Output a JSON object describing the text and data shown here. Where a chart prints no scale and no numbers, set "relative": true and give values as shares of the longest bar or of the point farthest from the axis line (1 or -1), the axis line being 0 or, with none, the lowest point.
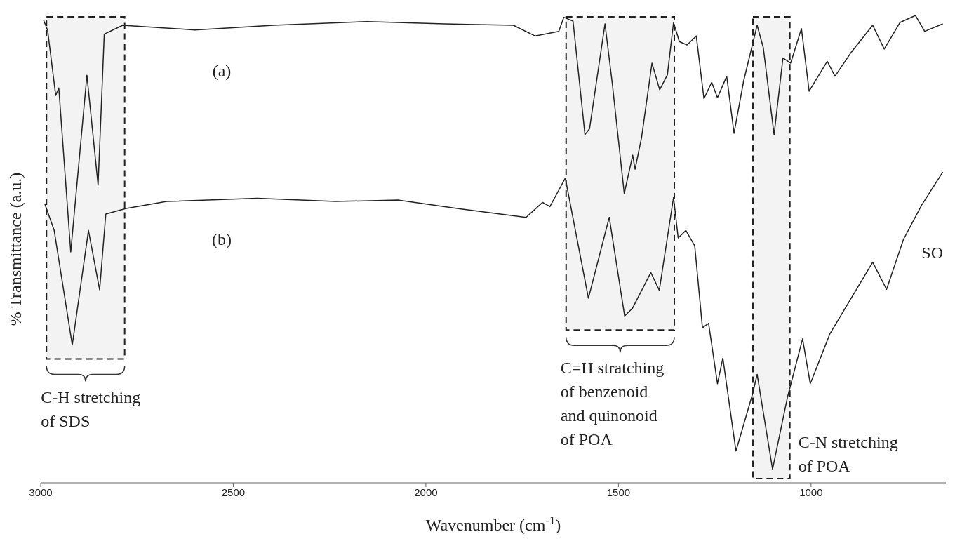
{
  "chart_data": {
    "type": "line",
    "relative": true,
    "xlabel": "Wavenumber (cm$^{-1}$)",
    "ylabel": "% Transmittance (a.u.)",
    "xlim": [
      3000,
      650
    ],
    "xticks": [
      3000,
      2500,
      2000,
      1500,
      1000
    ],
    "series": [
      {
        "name": "(a)",
        "color": "#222222",
        "x": [
          2993,
          2982,
          2961,
          2953,
          2922,
          2880,
          2851,
          2835,
          2787,
          2600,
          2396,
          2153,
          1951,
          1891,
          1773,
          1716,
          1655,
          1642,
          1618,
          1587,
          1575,
          1535,
          1516,
          1485,
          1463,
          1457,
          1440,
          1413,
          1393,
          1373,
          1357,
          1342,
          1322,
          1298,
          1278,
          1258,
          1243,
          1219,
          1200,
          1175,
          1140,
          1124,
          1096,
          1073,
          1053,
          1025,
          1005,
          958,
          938,
          895,
          840,
          810,
          769,
          729,
          705,
          658
        ],
        "values": [
          0.991,
          0.968,
          0.829,
          0.845,
          0.494,
          0.872,
          0.637,
          0.96,
          0.979,
          0.969,
          0.979,
          0.987,
          0.982,
          0.981,
          0.979,
          0.956,
          0.966,
          0.996,
          0.988,
          0.745,
          0.758,
          0.982,
          0.854,
          0.619,
          0.701,
          0.671,
          0.739,
          0.898,
          0.841,
          0.873,
          0.985,
          0.944,
          0.937,
          0.956,
          0.822,
          0.857,
          0.824,
          0.87,
          0.748,
          0.86,
          0.979,
          0.931,
          0.745,
          0.909,
          0.898,
          0.972,
          0.838,
          0.902,
          0.87,
          0.922,
          0.979,
          0.928,
          0.985,
          1,
          0.966,
          0.982
        ]
      },
      {
        "name": "(b)",
        "color": "#222222",
        "x": [
          2989,
          2965,
          2918,
          2876,
          2847,
          2831,
          2778,
          2673,
          2438,
          2235,
          2073,
          1909,
          1891,
          1740,
          1697,
          1678,
          1638,
          1578,
          1524,
          1484,
          1464,
          1416,
          1394,
          1357,
          1345,
          1325,
          1302,
          1282,
          1266,
          1243,
          1229,
          1195,
          1152,
          1140,
          1100,
          1061,
          1022,
          1002,
          951,
          840,
          804,
          760,
          713,
          658
        ],
        "values": [
          0.596,
          0.54,
          0.295,
          0.54,
          0.413,
          0.575,
          0.587,
          0.602,
          0.609,
          0.602,
          0.605,
          0.586,
          0.584,
          0.568,
          0.6,
          0.591,
          0.652,
          0.395,
          0.568,
          0.357,
          0.373,
          0.45,
          0.412,
          0.611,
          0.524,
          0.54,
          0.507,
          0.332,
          0.341,
          0.212,
          0.267,
          0.068,
          0.19,
          0.232,
          0.029,
          0.184,
          0.308,
          0.212,
          0.319,
          0.472,
          0.414,
          0.521,
          0.594,
          0.665
        ]
      }
    ],
    "bands": [
      {
        "axis": "x",
        "from": 2985,
        "to": 2782,
        "label": "C-H stretching of SDS",
        "color": "#f3f3f3"
      },
      {
        "axis": "x",
        "from": 1636,
        "to": 1355,
        "label": "C=H stratching of benzenoid and quinonoid of POA",
        "color": "#f3f3f3"
      },
      {
        "axis": "x",
        "from": 1151,
        "to": 1055,
        "label": "C-N stretching of POA",
        "color": "#f3f3f3"
      }
    ],
    "annotations": [
      "SO"
    ]
  }
}
